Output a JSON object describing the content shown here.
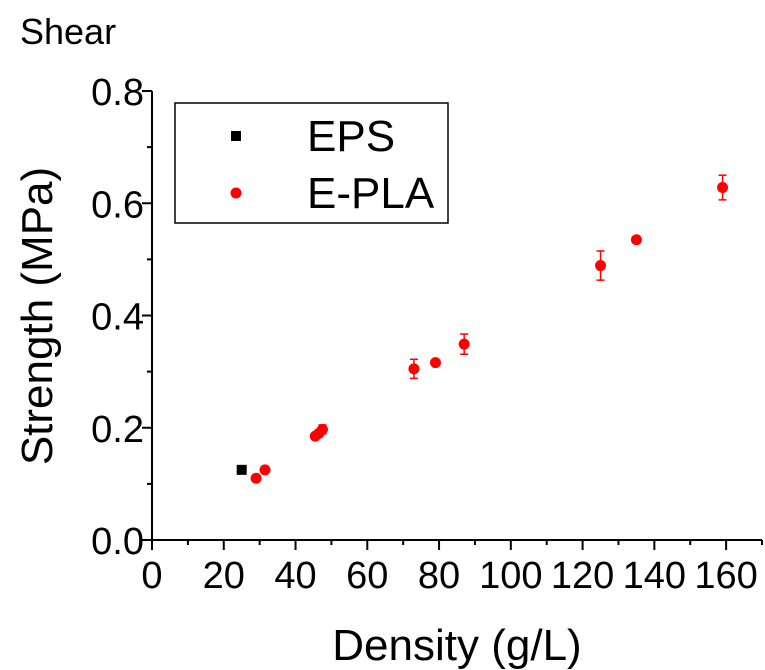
{
  "chart_data": {
    "type": "scatter",
    "title": "Shear",
    "xlabel": "Density (g/L)",
    "ylabel": "Strength (MPa)",
    "xlim": [
      0,
      170
    ],
    "ylim": [
      0,
      0.8
    ],
    "x_ticks": [
      0,
      20,
      40,
      60,
      80,
      100,
      120,
      140,
      160
    ],
    "x_tick_labels": [
      "0",
      "20",
      "40",
      "60",
      "80",
      "100",
      "120",
      "140",
      "160"
    ],
    "y_ticks": [
      0.0,
      0.2,
      0.4,
      0.6,
      0.8
    ],
    "y_tick_labels": [
      "0.0",
      "0.2",
      "0.4",
      "0.6",
      "0.8"
    ],
    "grid": false,
    "legend_position": "top-left",
    "series": [
      {
        "name": "EPS",
        "marker": "square",
        "color": "#000000",
        "points": [
          {
            "x": 25,
            "y": 0.125,
            "err": 0
          }
        ]
      },
      {
        "name": "E-PLA",
        "marker": "circle",
        "color": "#ff0000",
        "points": [
          {
            "x": 29,
            "y": 0.11,
            "err": 0
          },
          {
            "x": 31.5,
            "y": 0.125,
            "err": 0.003
          },
          {
            "x": 45.5,
            "y": 0.185,
            "err": 0.005
          },
          {
            "x": 46.5,
            "y": 0.19,
            "err": 0.005
          },
          {
            "x": 47.5,
            "y": 0.197,
            "err": 0.008
          },
          {
            "x": 73,
            "y": 0.305,
            "err": 0.017
          },
          {
            "x": 79,
            "y": 0.316,
            "err": 0.005
          },
          {
            "x": 87,
            "y": 0.349,
            "err": 0.018
          },
          {
            "x": 125,
            "y": 0.489,
            "err": 0.026
          },
          {
            "x": 135,
            "y": 0.535,
            "err": 0.005
          },
          {
            "x": 159,
            "y": 0.628,
            "err": 0.022
          }
        ]
      }
    ]
  }
}
